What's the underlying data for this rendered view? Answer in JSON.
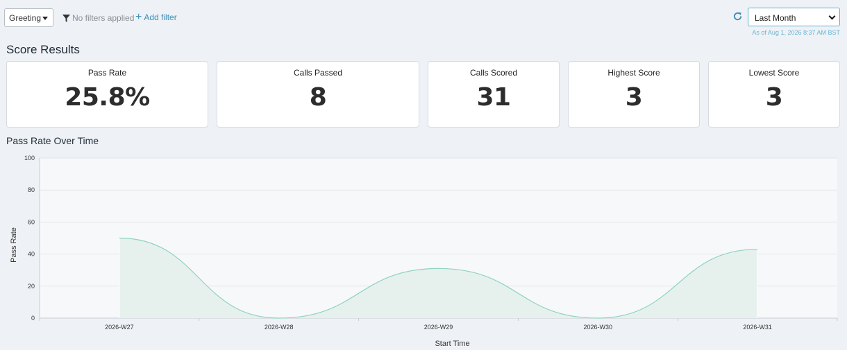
{
  "toolbar": {
    "scope_select": "Greeting",
    "filter_status": "No filters applied",
    "add_filter_label": "Add filter",
    "period_select": "Last Month",
    "as_of": "As of Aug 1, 2026 8:37 AM BST"
  },
  "score_results": {
    "title": "Score Results",
    "cards": [
      {
        "label": "Pass Rate",
        "value": "25.8%"
      },
      {
        "label": "Calls Passed",
        "value": "8"
      },
      {
        "label": "Calls Scored",
        "value": "31"
      },
      {
        "label": "Highest Score",
        "value": "3"
      },
      {
        "label": "Lowest Score",
        "value": "3"
      }
    ]
  },
  "chart_section": {
    "title": "Pass Rate Over Time"
  },
  "chart_data": {
    "type": "area",
    "categories": [
      "2026-W27",
      "2026-W28",
      "2026-W29",
      "2026-W30",
      "2026-W31"
    ],
    "series": [
      {
        "values": [
          50,
          0,
          31,
          0,
          43
        ]
      }
    ],
    "xlabel": "Start Time",
    "ylabel": "Pass Rate",
    "ylim": [
      0,
      100
    ],
    "yticks": [
      "0",
      "20",
      "40",
      "60",
      "80",
      "100"
    ],
    "grid": true,
    "color": "#8fd3bf"
  }
}
